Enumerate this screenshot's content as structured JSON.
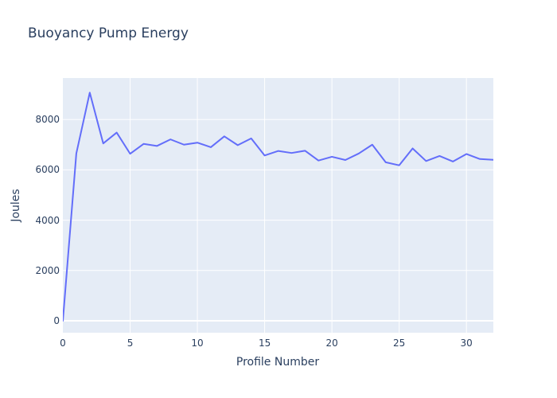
{
  "figure": {
    "title": "Buoyancy Pump Energy"
  },
  "chart_data": {
    "type": "line",
    "title": "Buoyancy Pump Energy",
    "xlabel": "Profile Number",
    "ylabel": "Joules",
    "x": [
      0,
      1,
      2,
      3,
      4,
      5,
      6,
      7,
      8,
      9,
      10,
      11,
      12,
      13,
      14,
      15,
      16,
      17,
      18,
      19,
      20,
      21,
      22,
      23,
      24,
      25,
      26,
      27,
      28,
      29,
      30,
      31,
      32
    ],
    "values": [
      0,
      6650,
      9070,
      7050,
      7480,
      6640,
      7030,
      6950,
      7210,
      7000,
      7080,
      6900,
      7330,
      6980,
      7250,
      6570,
      6750,
      6670,
      6760,
      6370,
      6520,
      6390,
      6650,
      7000,
      6300,
      6180,
      6850,
      6350,
      6550,
      6330,
      6630,
      6430,
      6400
    ],
    "x_ticks": [
      0,
      5,
      10,
      15,
      20,
      25,
      30
    ],
    "y_ticks": [
      0,
      2000,
      4000,
      6000,
      8000
    ],
    "xlim": [
      0,
      32
    ],
    "ylim": [
      -475,
      9650
    ],
    "grid": true,
    "legend_position": "none",
    "colors": {
      "line": "#636EFA",
      "plot_bg": "#E5ECF6",
      "grid": "#FFFFFF",
      "text": "#2a3f5f",
      "page_bg": "#FFFFFF"
    }
  }
}
